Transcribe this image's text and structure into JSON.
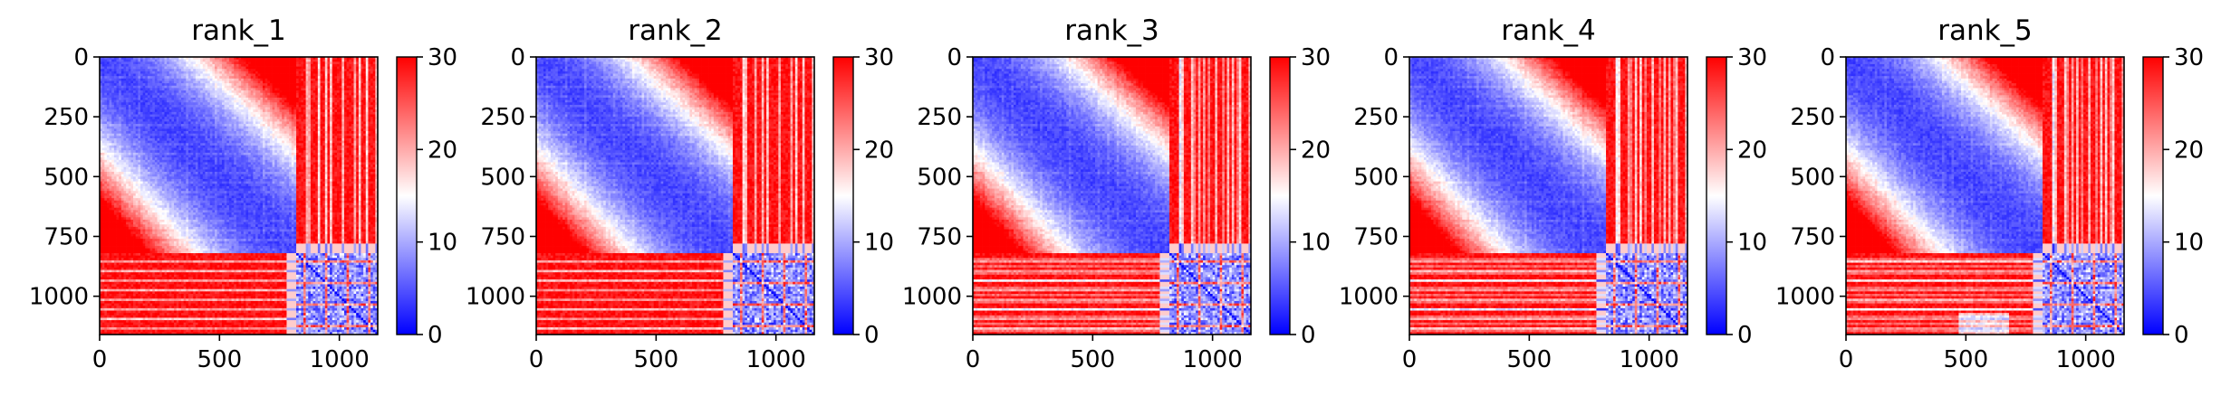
{
  "chart_data": [
    {
      "type": "heatmap",
      "title": "rank_1",
      "xticks": [
        0,
        500,
        1000
      ],
      "yticks": [
        0,
        250,
        500,
        750,
        1000
      ],
      "xlim": [
        0,
        1160
      ],
      "ylim": [
        0,
        1160
      ],
      "y_inverted": true,
      "matrix_size": 1160,
      "cluster_boundary": 820,
      "colorbar": {
        "ticks": [
          0,
          10,
          20,
          30
        ],
        "range": [
          0,
          30
        ],
        "colormap": "bwr",
        "low_color": "#0000ff",
        "mid_color": "#ffffff",
        "high_color": "#ff0000"
      },
      "variant": 1
    },
    {
      "type": "heatmap",
      "title": "rank_2",
      "xticks": [
        0,
        500,
        1000
      ],
      "yticks": [
        0,
        250,
        500,
        750,
        1000
      ],
      "xlim": [
        0,
        1160
      ],
      "ylim": [
        0,
        1160
      ],
      "y_inverted": true,
      "matrix_size": 1160,
      "cluster_boundary": 820,
      "colorbar": {
        "ticks": [
          0,
          10,
          20,
          30
        ],
        "range": [
          0,
          30
        ],
        "colormap": "bwr",
        "low_color": "#0000ff",
        "mid_color": "#ffffff",
        "high_color": "#ff0000"
      },
      "variant": 2
    },
    {
      "type": "heatmap",
      "title": "rank_3",
      "xticks": [
        0,
        500,
        1000
      ],
      "yticks": [
        0,
        250,
        500,
        750,
        1000
      ],
      "xlim": [
        0,
        1160
      ],
      "ylim": [
        0,
        1160
      ],
      "y_inverted": true,
      "matrix_size": 1160,
      "cluster_boundary": 820,
      "colorbar": {
        "ticks": [
          0,
          10,
          20,
          30
        ],
        "range": [
          0,
          30
        ],
        "colormap": "bwr",
        "low_color": "#0000ff",
        "mid_color": "#ffffff",
        "high_color": "#ff0000"
      },
      "variant": 3
    },
    {
      "type": "heatmap",
      "title": "rank_4",
      "xticks": [
        0,
        500,
        1000
      ],
      "yticks": [
        0,
        250,
        500,
        750,
        1000
      ],
      "xlim": [
        0,
        1160
      ],
      "ylim": [
        0,
        1160
      ],
      "y_inverted": true,
      "matrix_size": 1160,
      "cluster_boundary": 820,
      "colorbar": {
        "ticks": [
          0,
          10,
          20,
          30
        ],
        "range": [
          0,
          30
        ],
        "colormap": "bwr",
        "low_color": "#0000ff",
        "mid_color": "#ffffff",
        "high_color": "#ff0000"
      },
      "variant": 4
    },
    {
      "type": "heatmap",
      "title": "rank_5",
      "xticks": [
        0,
        500,
        1000
      ],
      "yticks": [
        0,
        250,
        500,
        750,
        1000
      ],
      "xlim": [
        0,
        1160
      ],
      "ylim": [
        0,
        1160
      ],
      "y_inverted": true,
      "matrix_size": 1160,
      "cluster_boundary": 820,
      "colorbar": {
        "ticks": [
          0,
          10,
          20,
          30
        ],
        "range": [
          0,
          30
        ],
        "colormap": "bwr",
        "low_color": "#0000ff",
        "mid_color": "#ffffff",
        "high_color": "#ff0000"
      },
      "variant": 5
    }
  ]
}
